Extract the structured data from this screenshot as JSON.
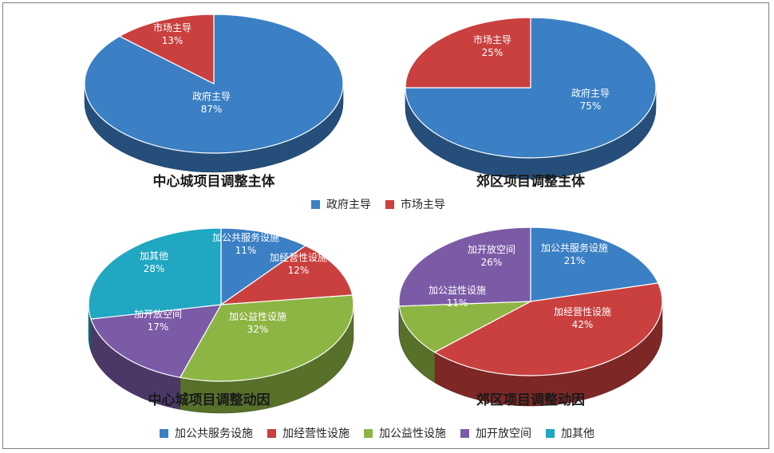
{
  "chart_data": [
    {
      "type": "pie",
      "title": "中心城项目调整主体",
      "slices": [
        {
          "label": "政府主导",
          "value": 87,
          "value_label": "87%",
          "color": "#3b7fc4"
        },
        {
          "label": "市场主导",
          "value": 13,
          "value_label": "13%",
          "color": "#c9403f"
        }
      ]
    },
    {
      "type": "pie",
      "title": "郊区项目调整主体",
      "slices": [
        {
          "label": "政府主导",
          "value": 75,
          "value_label": "75%",
          "color": "#3b7fc4"
        },
        {
          "label": "市场主导",
          "value": 25,
          "value_label": "25%",
          "color": "#c9403f"
        }
      ]
    },
    {
      "type": "pie",
      "title": "中心城项目调整动因",
      "slices": [
        {
          "label": "加公共服务设施",
          "value": 11,
          "value_label": "11%",
          "color": "#3b7fc4"
        },
        {
          "label": "加经营性设施",
          "value": 12,
          "value_label": "12%",
          "color": "#c9403f"
        },
        {
          "label": "加公益性设施",
          "value": 32,
          "value_label": "32%",
          "color": "#8db543"
        },
        {
          "label": "加开放空间",
          "value": 17,
          "value_label": "17%",
          "color": "#7b5ba6"
        },
        {
          "label": "加其他",
          "value": 28,
          "value_label": "28%",
          "color": "#20a7c1"
        }
      ]
    },
    {
      "type": "pie",
      "title": "郊区项目调整动因",
      "slices": [
        {
          "label": "加公共服务设施",
          "value": 21,
          "value_label": "21%",
          "color": "#3b7fc4"
        },
        {
          "label": "加经营性设施",
          "value": 42,
          "value_label": "42%",
          "color": "#c9403f"
        },
        {
          "label": "加公益性设施",
          "value": 11,
          "value_label": "11%",
          "color": "#8db543"
        },
        {
          "label": "加开放空间",
          "value": 26,
          "value_label": "26%",
          "color": "#7b5ba6"
        }
      ]
    }
  ],
  "legends": {
    "top": [
      {
        "label": "政府主导",
        "color": "#3b7fc4"
      },
      {
        "label": "市场主导",
        "color": "#c9403f"
      }
    ],
    "bottom": [
      {
        "label": "加公共服务设施",
        "color": "#3b7fc4"
      },
      {
        "label": "加经营性设施",
        "color": "#c9403f"
      },
      {
        "label": "加公益性设施",
        "color": "#8db543"
      },
      {
        "label": "加开放空间",
        "color": "#7b5ba6"
      },
      {
        "label": "加其他",
        "color": "#20a7c1"
      }
    ]
  }
}
